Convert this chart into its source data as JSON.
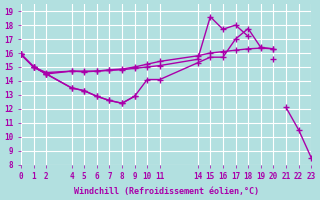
{
  "title": "",
  "xlabel": "Windchill (Refroidissement éolien,°C)",
  "background_color": "#b2e0e0",
  "grid_color": "#ffffff",
  "line_color": "#aa00aa",
  "x_ticks": [
    0,
    1,
    2,
    4,
    5,
    6,
    7,
    8,
    9,
    10,
    11,
    14,
    15,
    16,
    17,
    18,
    19,
    20,
    21,
    22,
    23
  ],
  "ylim": [
    8,
    19.5
  ],
  "xlim": [
    0,
    23
  ],
  "yticks": [
    8,
    9,
    10,
    11,
    12,
    13,
    14,
    15,
    16,
    17,
    18,
    19
  ],
  "series": [
    {
      "x": [
        0,
        1,
        2,
        4,
        5,
        6,
        7,
        8,
        9,
        10,
        11,
        14,
        15,
        16,
        17,
        18,
        19,
        20,
        21,
        22,
        23
      ],
      "y": [
        15.9,
        15.0,
        14.5,
        13.5,
        13.3,
        12.9,
        12.6,
        12.4,
        12.9,
        null,
        null,
        null,
        null,
        null,
        null,
        null,
        null,
        null,
        12.1,
        10.5,
        8.5
      ]
    },
    {
      "x": [
        0,
        1,
        2,
        4,
        5,
        6,
        7,
        8,
        9,
        10,
        11,
        14,
        15,
        16,
        17,
        18,
        19,
        20,
        21,
        22,
        23
      ],
      "y": [
        15.9,
        15.0,
        14.5,
        13.5,
        13.3,
        12.9,
        12.6,
        12.4,
        12.9,
        14.1,
        14.1,
        15.3,
        15.7,
        15.7,
        17.0,
        17.75,
        16.4,
        16.3,
        null,
        null,
        null
      ]
    },
    {
      "x": [
        0,
        1,
        2,
        4,
        5,
        6,
        7,
        8,
        9,
        10,
        11,
        14,
        15,
        16,
        17,
        18,
        19,
        20,
        21,
        22,
        23
      ],
      "y": [
        15.9,
        15.0,
        14.6,
        14.7,
        14.7,
        14.7,
        14.8,
        14.85,
        15.0,
        15.2,
        15.4,
        15.8,
        16.0,
        16.1,
        16.2,
        16.3,
        16.35,
        16.3,
        null,
        null,
        null
      ]
    },
    {
      "x": [
        0,
        1,
        2,
        4,
        5,
        6,
        7,
        8,
        9,
        10,
        11,
        14,
        15,
        16,
        17,
        18,
        19,
        20,
        21,
        22,
        23
      ],
      "y": [
        15.9,
        15.0,
        14.5,
        14.7,
        14.65,
        14.7,
        14.75,
        14.8,
        14.9,
        15.0,
        15.1,
        15.55,
        18.6,
        17.7,
        18.0,
        17.2,
        null,
        15.6,
        null,
        null,
        null
      ]
    }
  ]
}
